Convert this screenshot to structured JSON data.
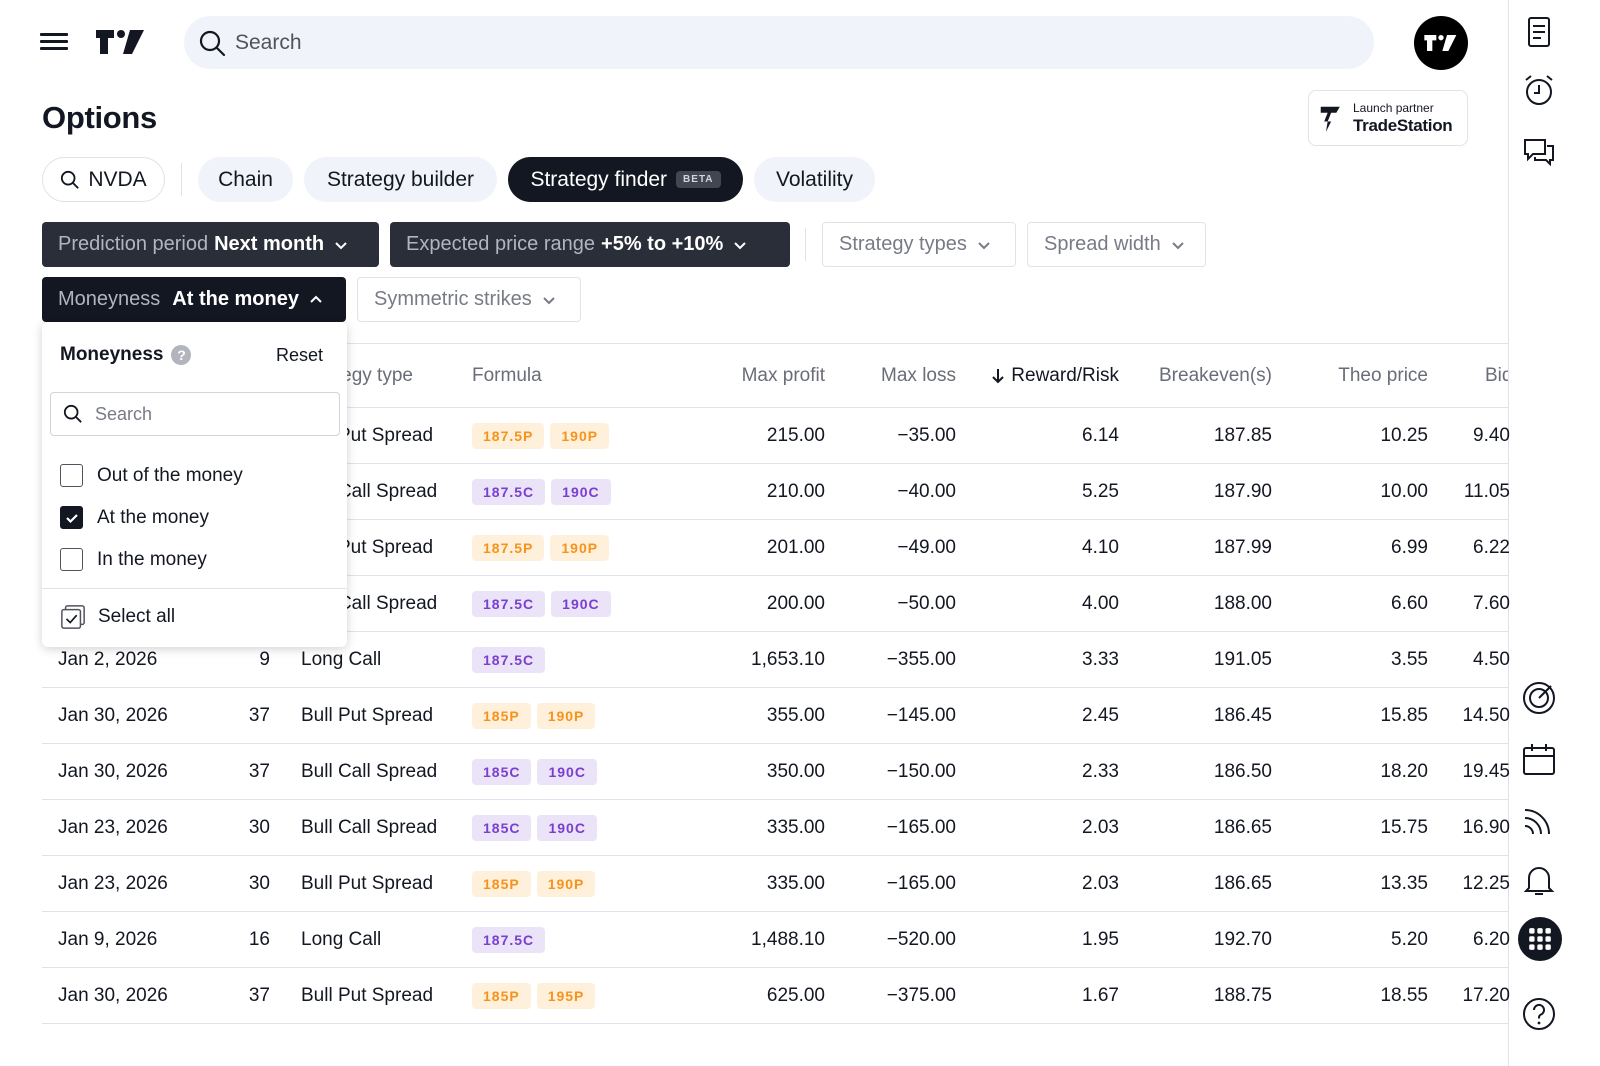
{
  "header": {
    "search_placeholder": "Search"
  },
  "page": {
    "title": "Options",
    "partner_line1": "Launch partner",
    "partner_line2": "TradeStation"
  },
  "tabs": {
    "symbol": "NVDA",
    "chain": "Chain",
    "strategy_builder": "Strategy builder",
    "strategy_finder": "Strategy finder",
    "beta": "BETA",
    "volatility": "Volatility"
  },
  "filters": {
    "prediction_label": "Prediction period",
    "prediction_value": "Next month",
    "range_label": "Expected price range",
    "range_value": "+5% to +10%",
    "strategy_types": "Strategy types",
    "spread_width": "Spread width",
    "moneyness_label": "Moneyness",
    "moneyness_value": "At the money",
    "symmetric": "Symmetric strikes"
  },
  "dropdown": {
    "title": "Moneyness",
    "reset": "Reset",
    "search_placeholder": "Search",
    "options": [
      {
        "label": "Out of the money",
        "checked": false
      },
      {
        "label": "At the money",
        "checked": true
      },
      {
        "label": "In the money",
        "checked": false
      }
    ],
    "select_all": "Select all"
  },
  "table": {
    "headers": {
      "strategy_type": "Strategy type",
      "formula": "Formula",
      "max_profit": "Max profit",
      "max_loss": "Max loss",
      "reward_risk": "Reward/Risk",
      "breakeven": "Breakeven(s)",
      "theo_price": "Theo price",
      "bid": "Bid"
    },
    "rows": [
      {
        "date": "",
        "dte": "",
        "type": "Bull Put Spread",
        "legs": [
          {
            "t": "187.5P",
            "k": "P"
          },
          {
            "t": "190P",
            "k": "P"
          }
        ],
        "max_profit": "215.00",
        "max_loss": "−35.00",
        "rr": "6.14",
        "be": "187.85",
        "theo": "10.25",
        "bid": "9.40"
      },
      {
        "date": "",
        "dte": "",
        "type": "Bull Call Spread",
        "legs": [
          {
            "t": "187.5C",
            "k": "C"
          },
          {
            "t": "190C",
            "k": "C"
          }
        ],
        "max_profit": "210.00",
        "max_loss": "−40.00",
        "rr": "5.25",
        "be": "187.90",
        "theo": "10.00",
        "bid": "11.05"
      },
      {
        "date": "",
        "dte": "",
        "type": "Bull Put Spread",
        "legs": [
          {
            "t": "187.5P",
            "k": "P"
          },
          {
            "t": "190P",
            "k": "P"
          }
        ],
        "max_profit": "201.00",
        "max_loss": "−49.00",
        "rr": "4.10",
        "be": "187.99",
        "theo": "6.99",
        "bid": "6.22"
      },
      {
        "date": "",
        "dte": "",
        "type": "Bull Call Spread",
        "legs": [
          {
            "t": "187.5C",
            "k": "C"
          },
          {
            "t": "190C",
            "k": "C"
          }
        ],
        "max_profit": "200.00",
        "max_loss": "−50.00",
        "rr": "4.00",
        "be": "188.00",
        "theo": "6.60",
        "bid": "7.60"
      },
      {
        "date": "Jan 2, 2026",
        "dte": "9",
        "type": "Long Call",
        "legs": [
          {
            "t": "187.5C",
            "k": "C"
          }
        ],
        "max_profit": "1,653.10",
        "max_loss": "−355.00",
        "rr": "3.33",
        "be": "191.05",
        "theo": "3.55",
        "bid": "4.50"
      },
      {
        "date": "Jan 30, 2026",
        "dte": "37",
        "type": "Bull Put Spread",
        "legs": [
          {
            "t": "185P",
            "k": "P"
          },
          {
            "t": "190P",
            "k": "P"
          }
        ],
        "max_profit": "355.00",
        "max_loss": "−145.00",
        "rr": "2.45",
        "be": "186.45",
        "theo": "15.85",
        "bid": "14.50"
      },
      {
        "date": "Jan 30, 2026",
        "dte": "37",
        "type": "Bull Call Spread",
        "legs": [
          {
            "t": "185C",
            "k": "C"
          },
          {
            "t": "190C",
            "k": "C"
          }
        ],
        "max_profit": "350.00",
        "max_loss": "−150.00",
        "rr": "2.33",
        "be": "186.50",
        "theo": "18.20",
        "bid": "19.45"
      },
      {
        "date": "Jan 23, 2026",
        "dte": "30",
        "type": "Bull Call Spread",
        "legs": [
          {
            "t": "185C",
            "k": "C"
          },
          {
            "t": "190C",
            "k": "C"
          }
        ],
        "max_profit": "335.00",
        "max_loss": "−165.00",
        "rr": "2.03",
        "be": "186.65",
        "theo": "15.75",
        "bid": "16.90"
      },
      {
        "date": "Jan 23, 2026",
        "dte": "30",
        "type": "Bull Put Spread",
        "legs": [
          {
            "t": "185P",
            "k": "P"
          },
          {
            "t": "190P",
            "k": "P"
          }
        ],
        "max_profit": "335.00",
        "max_loss": "−165.00",
        "rr": "2.03",
        "be": "186.65",
        "theo": "13.35",
        "bid": "12.25"
      },
      {
        "date": "Jan 9, 2026",
        "dte": "16",
        "type": "Long Call",
        "legs": [
          {
            "t": "187.5C",
            "k": "C"
          }
        ],
        "max_profit": "1,488.10",
        "max_loss": "−520.00",
        "rr": "1.95",
        "be": "192.70",
        "theo": "5.20",
        "bid": "6.20"
      },
      {
        "date": "Jan 30, 2026",
        "dte": "37",
        "type": "Bull Put Spread",
        "legs": [
          {
            "t": "185P",
            "k": "P"
          },
          {
            "t": "195P",
            "k": "P"
          }
        ],
        "max_profit": "625.00",
        "max_loss": "−375.00",
        "rr": "1.67",
        "be": "188.75",
        "theo": "18.55",
        "bid": "17.20"
      }
    ]
  },
  "colors": {
    "put_tag_bg": "#fff0dc",
    "put_tag_text": "#f7931a",
    "call_tag_bg": "#ebe3f7",
    "call_tag_text": "#7b3fcf",
    "dark": "#131722"
  },
  "sidebar_icons": [
    "watchlist-icon",
    "alert-clock-icon",
    "chat-icon",
    "target-icon",
    "calendar-icon",
    "news-feed-icon",
    "notification-bell-icon",
    "apps-grid-icon",
    "help-icon"
  ]
}
